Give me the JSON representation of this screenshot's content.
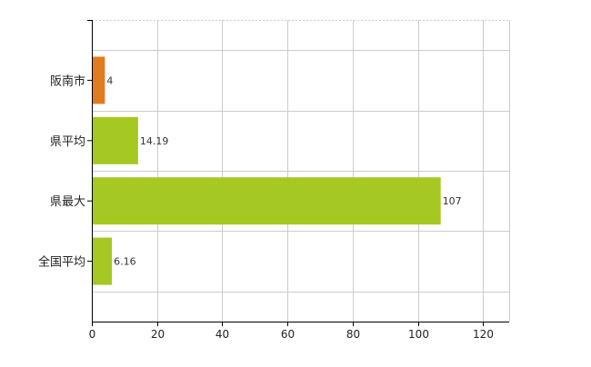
{
  "chart_data": {
    "type": "bar",
    "orientation": "horizontal",
    "categories": [
      "阪南市",
      "県平均",
      "県最大",
      "全国平均"
    ],
    "values": [
      4,
      14.19,
      107,
      6.16
    ],
    "data_labels": [
      "4",
      "14.19",
      "107",
      "6.16"
    ],
    "bar_colors": [
      "#e07b20",
      "#a6c822",
      "#a6c822",
      "#a6c822"
    ],
    "xlim": [
      0,
      128
    ],
    "xticks": [
      0,
      20,
      40,
      60,
      80,
      100,
      120
    ],
    "title": "",
    "xlabel": "",
    "ylabel": "",
    "grid": true,
    "gridline_color": "#cccccc",
    "axis_color": "#000000"
  }
}
